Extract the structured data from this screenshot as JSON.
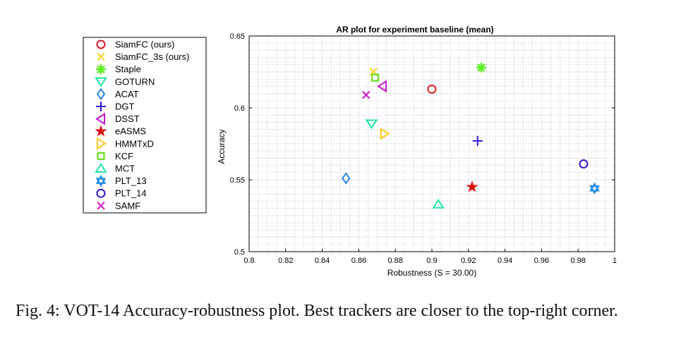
{
  "chart_data": {
    "type": "scatter",
    "title": "AR plot for experiment baseline (mean)",
    "xlabel": "Robustness (S = 30.00)",
    "ylabel": "Accuracy",
    "xlim": [
      0.8,
      1
    ],
    "ylim": [
      0.5,
      0.65
    ],
    "xticks": [
      "0.8",
      "0.82",
      "0.84",
      "0.86",
      "0.88",
      "0.9",
      "0.92",
      "0.94",
      "0.96",
      "0.98",
      "1"
    ],
    "yticks": [
      "0.5",
      "0.55",
      "0.6",
      "0.65"
    ],
    "grid": true,
    "legend_position": "outside-left",
    "series": [
      {
        "name": "SiamFC (ours)",
        "marker": "circle",
        "color": "#e01a22",
        "x": 0.9,
        "y": 0.613
      },
      {
        "name": "SiamFC_3s (ours)",
        "marker": "x",
        "color": "#ffd21e",
        "x": 0.868,
        "y": 0.625
      },
      {
        "name": "Staple",
        "marker": "asterisk",
        "color": "#5cf01e",
        "x": 0.927,
        "y": 0.628
      },
      {
        "name": "GOTURN",
        "marker": "triangle-down",
        "color": "#1ee6a0",
        "x": 0.867,
        "y": 0.589
      },
      {
        "name": "ACAT",
        "marker": "diamond",
        "color": "#2a82e6",
        "x": 0.853,
        "y": 0.551
      },
      {
        "name": "DGT",
        "marker": "plus",
        "color": "#3a14d6",
        "x": 0.925,
        "y": 0.577
      },
      {
        "name": "DSST",
        "marker": "triangle-left",
        "color": "#c814d2",
        "x": 0.873,
        "y": 0.615
      },
      {
        "name": "eASMS",
        "marker": "star",
        "color": "#dc1414",
        "x": 0.922,
        "y": 0.545
      },
      {
        "name": "HMMTxD",
        "marker": "triangle-right",
        "color": "#ffc81e",
        "x": 0.874,
        "y": 0.582
      },
      {
        "name": "KCF",
        "marker": "square",
        "color": "#64dc14",
        "x": 0.869,
        "y": 0.621
      },
      {
        "name": "MCT",
        "marker": "triangle-up",
        "color": "#28e6a0",
        "x": 0.9035,
        "y": 0.533
      },
      {
        "name": "PLT_13",
        "marker": "hexagram",
        "color": "#1e8ce6",
        "x": 0.989,
        "y": 0.544
      },
      {
        "name": "PLT_14",
        "marker": "circle",
        "color": "#3214c8",
        "x": 0.983,
        "y": 0.561
      },
      {
        "name": "SAMF",
        "marker": "x",
        "color": "#dc14c8",
        "x": 0.864,
        "y": 0.609
      }
    ]
  },
  "caption": "Fig. 4: VOT-14 Accuracy-robustness plot. Best trackers are closer to the top-right corner."
}
